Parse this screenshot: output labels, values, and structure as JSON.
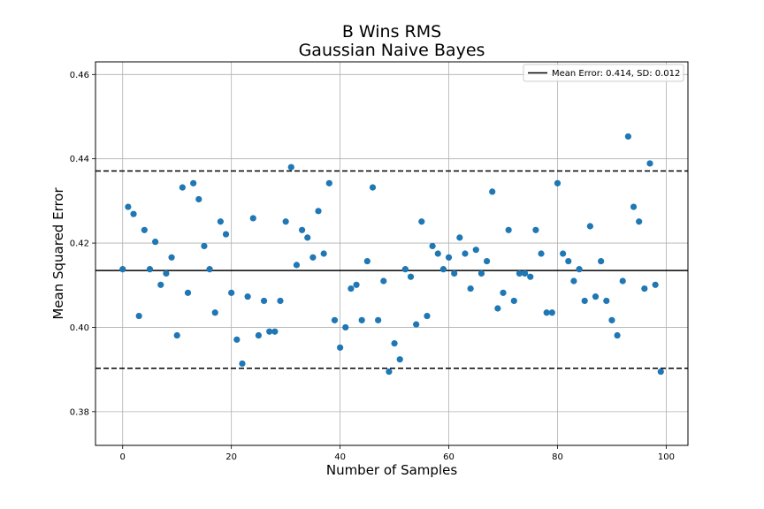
{
  "chart_data": {
    "type": "scatter",
    "title": [
      "B Wins RMS",
      "Gaussian Naive Bayes"
    ],
    "xlabel": "Number of Samples",
    "ylabel": "Mean Squared Error",
    "xlim": [
      -5,
      104
    ],
    "ylim": [
      0.372,
      0.463
    ],
    "xticks": [
      0,
      20,
      40,
      60,
      80,
      100
    ],
    "yticks": [
      0.38,
      0.4,
      0.42,
      0.44,
      0.46
    ],
    "grid": true,
    "legend": {
      "placement": "top-right",
      "label": "Mean Error: 0.414, SD: 0.012"
    },
    "mean_line": {
      "y": 0.4135,
      "style": "solid"
    },
    "sd_lines": [
      {
        "y": 0.4371,
        "style": "dashed"
      },
      {
        "y": 0.3903,
        "style": "dashed"
      }
    ],
    "point_color": "#1f77b4",
    "series": [
      {
        "x": [
          0,
          1,
          2,
          3,
          4,
          5,
          6,
          7,
          8,
          9,
          10,
          11,
          12,
          13,
          14,
          15,
          16,
          17,
          18,
          19,
          20,
          21,
          22,
          23,
          24,
          25,
          26,
          27,
          28,
          29,
          30,
          31,
          32,
          33,
          34,
          35,
          36,
          37,
          38,
          39,
          40,
          41,
          42,
          43,
          44,
          45,
          46,
          47,
          48,
          49,
          50,
          51,
          52,
          53,
          54,
          55,
          56,
          57,
          58,
          59,
          60,
          61,
          62,
          63,
          64,
          65,
          66,
          67,
          68,
          69,
          70,
          71,
          72,
          73,
          74,
          75,
          76,
          77,
          78,
          79,
          80,
          81,
          82,
          83,
          84,
          85,
          86,
          87,
          88,
          89,
          90,
          91,
          92,
          93,
          94,
          95,
          96,
          97,
          98,
          99
        ],
        "y": [
          0.4138,
          0.4286,
          0.4269,
          0.4027,
          0.4231,
          0.4138,
          0.4203,
          0.4101,
          0.4128,
          0.4166,
          0.3981,
          0.4332,
          0.4082,
          0.4342,
          0.4304,
          0.4193,
          0.4138,
          0.4035,
          0.4251,
          0.4221,
          0.4082,
          0.3971,
          0.3914,
          0.4073,
          0.4259,
          0.3981,
          0.4063,
          0.399,
          0.399,
          0.4063,
          0.4251,
          0.438,
          0.4148,
          0.4231,
          0.4213,
          0.4166,
          0.4276,
          0.4175,
          0.4342,
          0.4017,
          0.3952,
          0.4,
          0.4092,
          0.4101,
          0.4017,
          0.4157,
          0.4332,
          0.4017,
          0.411,
          0.3895,
          0.3962,
          0.3924,
          0.4138,
          0.412,
          0.4007,
          0.4251,
          0.4027,
          0.4193,
          0.4175,
          0.4138,
          0.4166,
          0.4128,
          0.4213,
          0.4175,
          0.4092,
          0.4184,
          0.4128,
          0.4157,
          0.4322,
          0.4045,
          0.4082,
          0.4231,
          0.4063,
          0.4128,
          0.4128,
          0.412,
          0.4231,
          0.4175,
          0.4035,
          0.4035,
          0.4342,
          0.4175,
          0.4157,
          0.411,
          0.4138,
          0.4063,
          0.424,
          0.4073,
          0.4157,
          0.4063,
          0.4017,
          0.3981,
          0.411,
          0.4453,
          0.4286,
          0.4251,
          0.4092,
          0.4389,
          0.4101,
          0.3895
        ]
      }
    ]
  }
}
